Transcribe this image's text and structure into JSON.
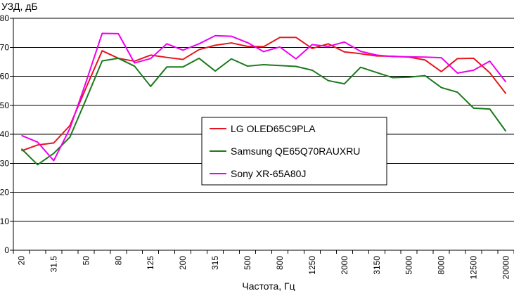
{
  "chart_data": {
    "type": "line",
    "title": "",
    "ylabel": "УЗД, дБ",
    "xlabel": "Частота, Гц",
    "ylim": [
      0,
      80
    ],
    "yticks": [
      0,
      10,
      20,
      30,
      40,
      50,
      60,
      70,
      80
    ],
    "grid": "horizontal",
    "legend_position": "center",
    "x": [
      "20",
      "25",
      "31.5",
      "40",
      "50",
      "63",
      "80",
      "100",
      "125",
      "160",
      "200",
      "250",
      "315",
      "400",
      "500",
      "630",
      "800",
      "1000",
      "1250",
      "1600",
      "2000",
      "2500",
      "3150",
      "4000",
      "5000",
      "6300",
      "8000",
      "10000",
      "12500",
      "16000",
      "20000"
    ],
    "x_tick_labels": [
      "20",
      "",
      "31.5",
      "",
      "50",
      "",
      "80",
      "",
      "125",
      "",
      "200",
      "",
      "315",
      "",
      "500",
      "",
      "800",
      "",
      "1250",
      "",
      "2000",
      "",
      "3150",
      "",
      "5000",
      "",
      "8000",
      "",
      "12500",
      "",
      "20000"
    ],
    "series": [
      {
        "name": "LG OLED65C9PLA",
        "color": "#e8141e",
        "values": [
          34.3,
          36.3,
          37.0,
          43.0,
          56.0,
          68.8,
          66.2,
          65.2,
          67.3,
          66.5,
          65.8,
          69.2,
          70.7,
          71.5,
          70.3,
          70.2,
          73.4,
          73.4,
          69.6,
          71.2,
          68.4,
          67.8,
          67.0,
          66.9,
          66.6,
          65.6,
          61.6,
          66.1,
          66.2,
          61.2,
          54.0
        ]
      },
      {
        "name": "Samsung QE65Q70RAUXRU",
        "color": "#1a7a1a",
        "values": [
          35.0,
          29.5,
          33.4,
          39.0,
          52.0,
          65.3,
          66.2,
          63.5,
          56.5,
          63.2,
          63.2,
          66.2,
          61.8,
          66.0,
          63.5,
          64.0,
          63.7,
          63.4,
          62.1,
          58.5,
          57.4,
          63.1,
          61.3,
          59.5,
          59.7,
          60.2,
          56.1,
          54.5,
          49.0,
          48.7,
          41.0
        ]
      },
      {
        "name": "Sony XR-65A80J",
        "color": "#ee00ee",
        "values": [
          39.6,
          37.3,
          30.9,
          42.0,
          58.0,
          74.8,
          74.7,
          64.6,
          66.1,
          71.2,
          69.0,
          71.2,
          74.0,
          73.8,
          71.6,
          68.5,
          70.1,
          66.0,
          70.9,
          70.3,
          71.8,
          68.6,
          67.3,
          66.8,
          66.7,
          66.6,
          66.4,
          61.1,
          62.1,
          65.2,
          58.0
        ]
      }
    ]
  }
}
